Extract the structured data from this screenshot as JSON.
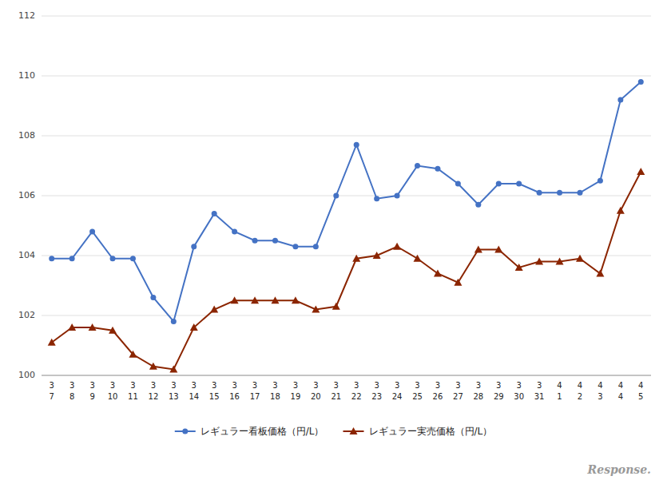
{
  "chart_data": {
    "type": "line",
    "categories": [
      "3\n7",
      "3\n8",
      "3\n9",
      "3\n10",
      "3\n11",
      "3\n12",
      "3\n13",
      "3\n14",
      "3\n15",
      "3\n16",
      "3\n17",
      "3\n18",
      "3\n19",
      "3\n20",
      "3\n21",
      "3\n22",
      "3\n23",
      "3\n24",
      "3\n25",
      "3\n26",
      "3\n27",
      "3\n28",
      "3\n29",
      "3\n30",
      "3\n31",
      "4\n1",
      "4\n2",
      "4\n3",
      "4\n4",
      "4\n5"
    ],
    "series": [
      {
        "name": "レギュラー看板価格（円/L）",
        "color": "#4472C4",
        "marker": "circle",
        "values": [
          103.9,
          103.9,
          104.8,
          103.9,
          103.9,
          102.6,
          101.8,
          104.3,
          105.4,
          104.8,
          104.5,
          104.5,
          104.3,
          104.3,
          106.0,
          107.7,
          105.9,
          106.0,
          107.0,
          106.9,
          106.4,
          105.7,
          106.4,
          106.4,
          106.1,
          106.1,
          106.1,
          106.5,
          109.2,
          109.8
        ]
      },
      {
        "name": "レギュラー実売価格（円/L）",
        "color": "#8B2500",
        "marker": "triangle",
        "values": [
          101.1,
          101.6,
          101.6,
          101.5,
          100.7,
          100.3,
          100.2,
          101.6,
          102.2,
          102.5,
          102.5,
          102.5,
          102.5,
          102.2,
          102.3,
          103.9,
          104.0,
          104.3,
          103.9,
          103.4,
          103.1,
          104.2,
          104.2,
          103.6,
          103.8,
          103.8,
          103.9,
          103.4,
          105.5,
          106.8
        ]
      }
    ],
    "ylim": [
      100,
      112
    ],
    "yticks": [
      100,
      102,
      104,
      106,
      108,
      110,
      112
    ],
    "grid": true,
    "legend": "bottom",
    "annotations": [
      "Response."
    ]
  }
}
